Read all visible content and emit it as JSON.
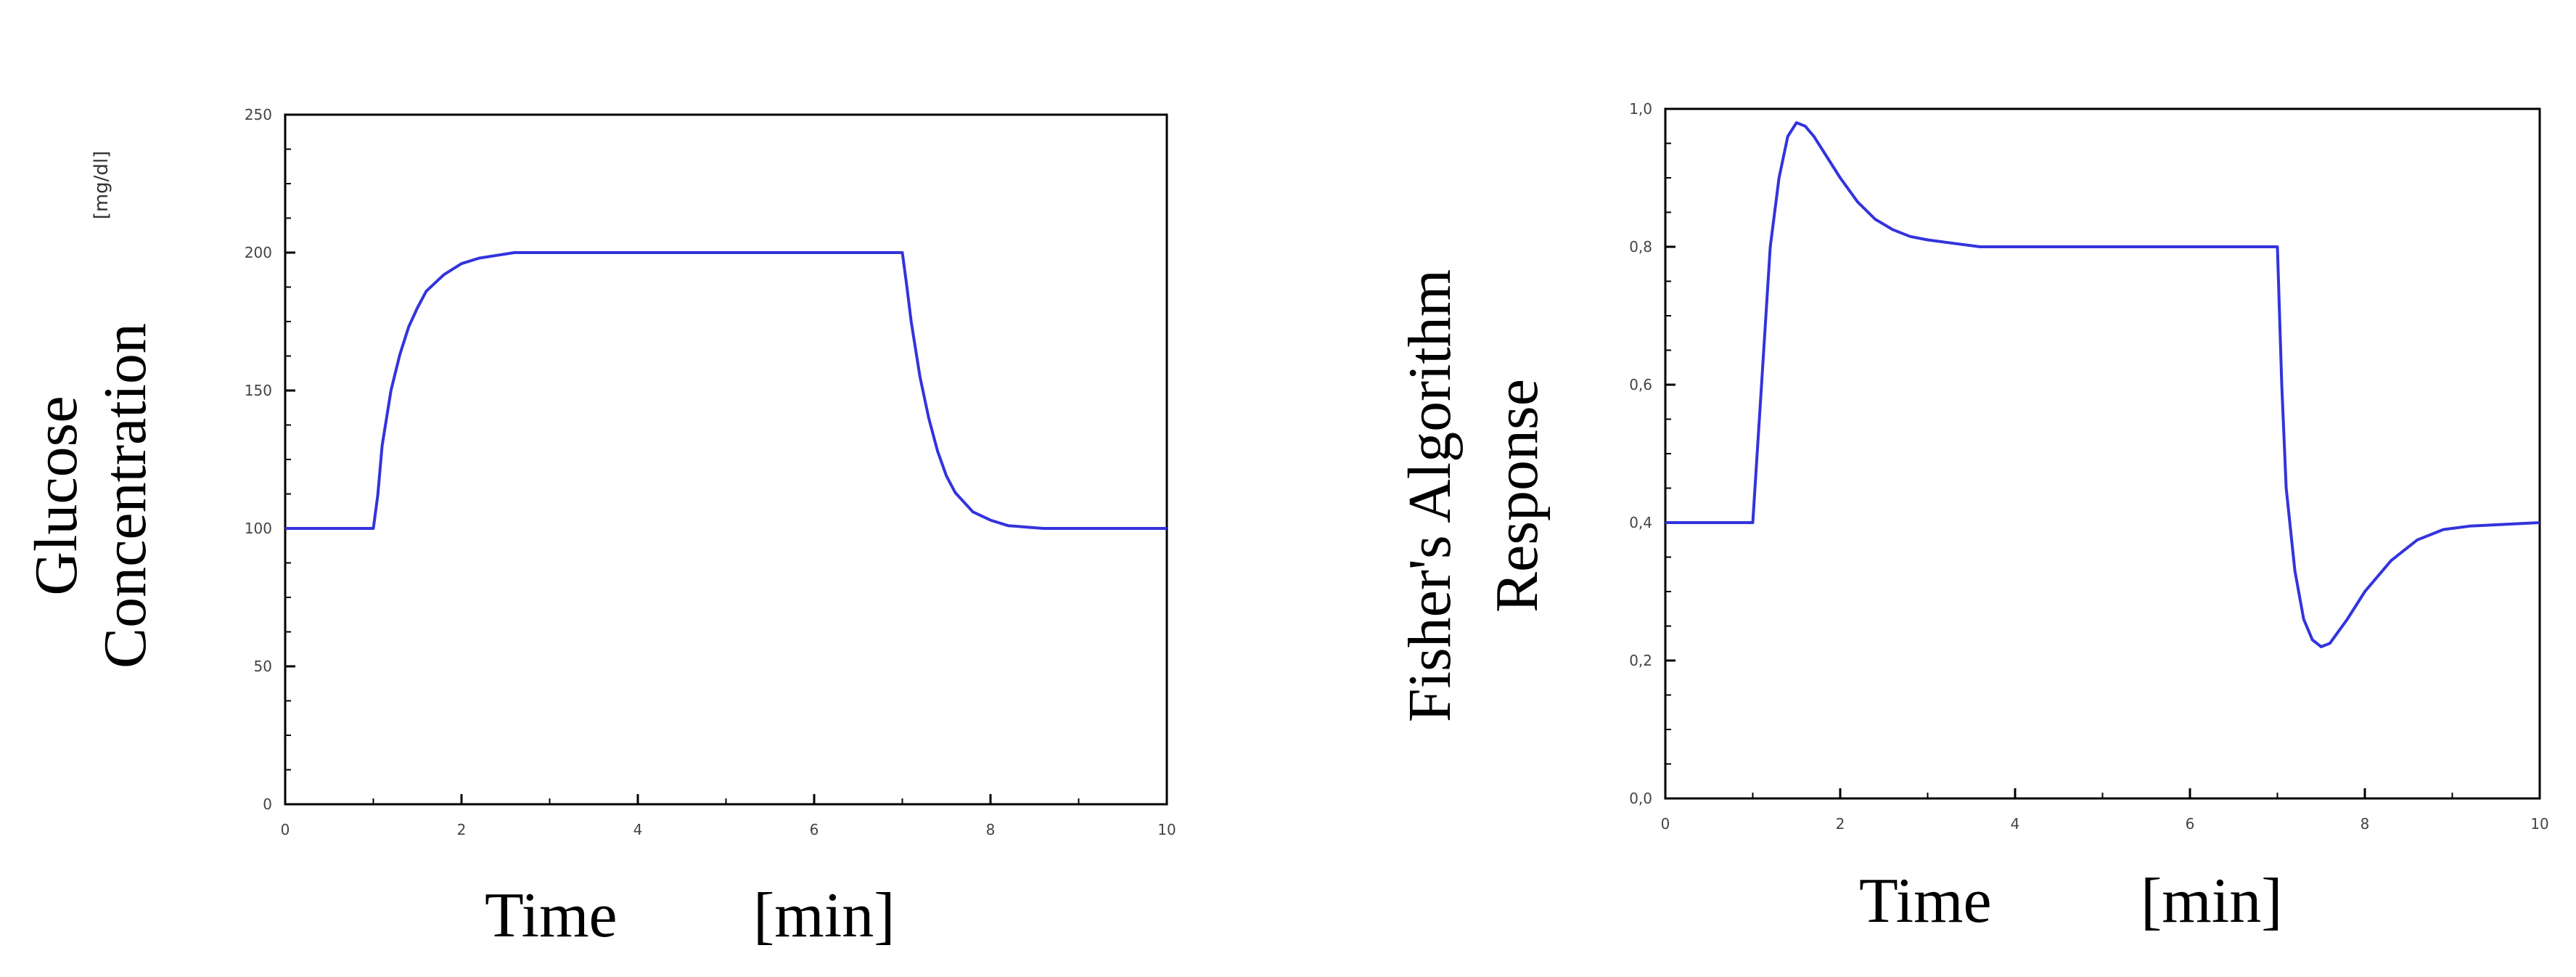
{
  "chart_data": [
    {
      "type": "line",
      "ylabel_lines": [
        "Glucose",
        "Concentration"
      ],
      "unit": "[mg/dl]",
      "xlabel_left": "Time",
      "xlabel_right": "[min]",
      "xlim": [
        0,
        10
      ],
      "ylim": [
        0,
        250
      ],
      "xticks": [
        0,
        2,
        4,
        6,
        8,
        10
      ],
      "yticks": [
        0,
        50,
        100,
        150,
        200,
        250
      ],
      "x": [
        0,
        1,
        1.05,
        1.1,
        1.2,
        1.3,
        1.4,
        1.5,
        1.6,
        1.8,
        2.0,
        2.2,
        2.4,
        2.6,
        2.8,
        3.0,
        7.0,
        7.05,
        7.1,
        7.2,
        7.3,
        7.4,
        7.5,
        7.6,
        7.8,
        8.0,
        8.2,
        8.4,
        8.6,
        8.8,
        10
      ],
      "y": [
        100,
        100,
        112,
        130,
        150,
        163,
        173,
        180,
        186,
        192,
        196,
        198,
        199,
        200,
        200,
        200,
        200,
        188,
        175,
        155,
        140,
        128,
        119,
        113,
        106,
        103,
        101,
        100.5,
        100,
        100,
        100
      ],
      "series": [
        {
          "color": "#3333dd"
        }
      ]
    },
    {
      "type": "line",
      "ylabel_lines": [
        "Fisher's Algorithm",
        "Response"
      ],
      "xlabel_left": "Time",
      "xlabel_right": "[min]",
      "xlim": [
        0,
        10
      ],
      "ylim": [
        0,
        1
      ],
      "xticks": [
        0,
        2,
        4,
        6,
        8,
        10
      ],
      "yticks": [
        0,
        0.2,
        0.4,
        0.6,
        0.8,
        1
      ],
      "ytick_labels": [
        "0,0",
        "0,2",
        "0,4",
        "0,6",
        "0,8",
        "1,0"
      ],
      "x": [
        0,
        1,
        1.1,
        1.2,
        1.3,
        1.4,
        1.5,
        1.6,
        1.7,
        1.8,
        2.0,
        2.2,
        2.4,
        2.6,
        2.8,
        3.0,
        3.3,
        3.6,
        7.0,
        7.05,
        7.1,
        7.2,
        7.3,
        7.4,
        7.5,
        7.6,
        7.8,
        8.0,
        8.3,
        8.6,
        8.9,
        9.2,
        10
      ],
      "y": [
        0.4,
        0.4,
        0.6,
        0.8,
        0.9,
        0.96,
        0.98,
        0.975,
        0.96,
        0.94,
        0.9,
        0.865,
        0.84,
        0.825,
        0.815,
        0.81,
        0.805,
        0.8,
        0.8,
        0.6,
        0.45,
        0.33,
        0.26,
        0.23,
        0.22,
        0.225,
        0.26,
        0.3,
        0.345,
        0.375,
        0.39,
        0.395,
        0.4
      ],
      "series": [
        {
          "color": "#3333dd"
        }
      ]
    }
  ]
}
